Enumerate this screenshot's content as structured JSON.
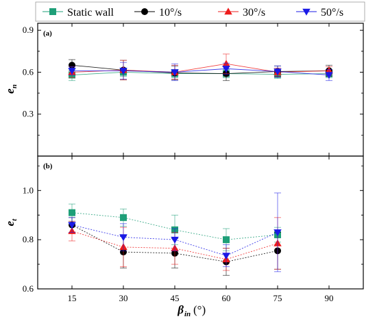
{
  "colors": {
    "static": "#1e9f78",
    "r10": "#000000",
    "r30": "#ee1c1c",
    "r50": "#1a1ae6"
  },
  "legend": {
    "items": [
      {
        "key": "static",
        "label": "Static wall",
        "marker": "square"
      },
      {
        "key": "r10",
        "label": "10°/s",
        "marker": "circle"
      },
      {
        "key": "r30",
        "label": "30°/s",
        "marker": "triangle-up"
      },
      {
        "key": "r50",
        "label": "50°/s",
        "marker": "triangle-down"
      }
    ]
  },
  "xaxis": {
    "label_main": "β",
    "label_sub": "in",
    "label_unit": " (°)"
  },
  "chart_data": [
    {
      "type": "scatter",
      "panel": "(a)",
      "ylabel_main": "e",
      "ylabel_sub": "n",
      "x": [
        15,
        30,
        45,
        60,
        75,
        90
      ],
      "xlim": [
        5,
        100
      ],
      "xticks": [
        "15",
        "30",
        "45",
        "60",
        "75",
        "90"
      ],
      "ylim": [
        0.0,
        0.95
      ],
      "yticks": [
        0.3,
        0.6,
        0.9
      ],
      "ytick_labels": [
        "0.3",
        "0.6",
        "0.9"
      ],
      "connect": "solid",
      "series": [
        {
          "key": "static",
          "name": "Static wall",
          "values": [
            0.58,
            0.6,
            0.59,
            0.59,
            0.585,
            0.59
          ],
          "err": [
            0.04,
            0.03,
            0.03,
            0.03,
            0.03,
            0.03
          ]
        },
        {
          "key": "r10",
          "name": "10°/s",
          "values": [
            0.65,
            0.615,
            0.595,
            0.59,
            0.605,
            0.61
          ],
          "err": [
            0.04,
            0.07,
            0.05,
            0.05,
            0.04,
            0.04
          ]
        },
        {
          "key": "r30",
          "name": "30°/s",
          "values": [
            0.6,
            0.615,
            0.6,
            0.66,
            0.6,
            0.61
          ],
          "err": [
            0.04,
            0.07,
            0.05,
            0.07,
            0.03,
            0.03
          ]
        },
        {
          "key": "r50",
          "name": "50°/s",
          "values": [
            0.61,
            0.61,
            0.6,
            0.625,
            0.605,
            0.58
          ],
          "err": [
            0.03,
            0.06,
            0.06,
            0.04,
            0.04,
            0.04
          ]
        }
      ]
    },
    {
      "type": "scatter",
      "panel": "(b)",
      "ylabel_main": "e",
      "ylabel_sub": "t",
      "x": [
        15,
        30,
        45,
        60,
        75,
        90
      ],
      "xlim": [
        5,
        100
      ],
      "xticks": [
        "15",
        "30",
        "45",
        "60",
        "75",
        "90"
      ],
      "ylim": [
        0.6,
        1.14
      ],
      "yticks": [
        0.6,
        0.8,
        1.0
      ],
      "ytick_labels": [
        "0.6",
        "0.8",
        "1.0"
      ],
      "connect": "dotted",
      "series": [
        {
          "key": "static",
          "name": "Static wall",
          "x": [
            15,
            30,
            45,
            60,
            75
          ],
          "values": [
            0.91,
            0.89,
            0.84,
            0.8,
            0.82
          ],
          "err": [
            0.035,
            0.035,
            0.06,
            0.045,
            0.03
          ]
        },
        {
          "key": "r10",
          "name": "10°/s",
          "x": [
            15,
            30,
            45,
            60,
            75
          ],
          "values": [
            0.86,
            0.75,
            0.745,
            0.71,
            0.755
          ],
          "err": [
            0.03,
            0.065,
            0.06,
            0.055,
            0.075
          ]
        },
        {
          "key": "r30",
          "name": "30°/s",
          "x": [
            15,
            30,
            45,
            60,
            75
          ],
          "values": [
            0.835,
            0.77,
            0.765,
            0.72,
            0.785
          ],
          "err": [
            0.04,
            0.08,
            0.065,
            0.045,
            0.105
          ]
        },
        {
          "key": "r50",
          "name": "50°/s",
          "x": [
            15,
            30,
            45,
            60,
            75
          ],
          "values": [
            0.86,
            0.81,
            0.8,
            0.735,
            0.83
          ],
          "err": [
            0.03,
            0.055,
            0.045,
            0.045,
            0.16
          ]
        }
      ]
    }
  ]
}
